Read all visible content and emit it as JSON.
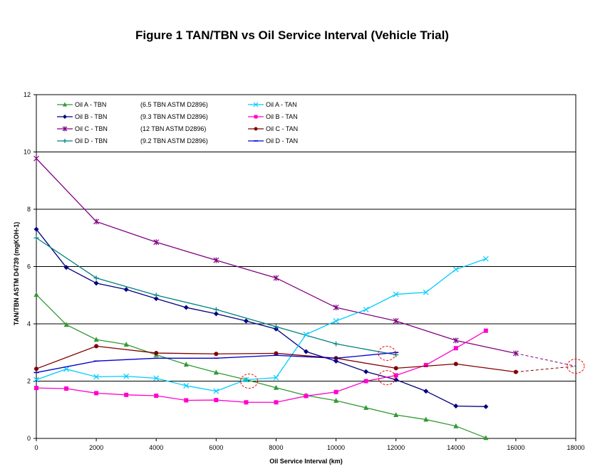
{
  "chart_data": {
    "type": "line",
    "title": "Figure 1 TAN/TBN vs Oil Service Interval (Vehicle Trial)",
    "xlabel": "Oil Service Interval (km)",
    "ylabel": "TAN/TBN ASTM D4739 (mgKOH-1)",
    "xlim": [
      0,
      18000
    ],
    "ylim": [
      0,
      12
    ],
    "xticks": [
      0,
      2000,
      4000,
      6000,
      8000,
      10000,
      12000,
      14000,
      16000,
      18000
    ],
    "yticks": [
      0,
      2,
      4,
      6,
      8,
      10,
      12
    ],
    "grid": "horizontal",
    "legend_position": "top-left",
    "series": [
      {
        "name": "Oil A - TBN",
        "note": "(6.5 TBN ASTM D2896)",
        "color": "#339933",
        "marker": "triangle",
        "x": [
          0,
          1000,
          2000,
          3000,
          4000,
          5000,
          6000,
          7000,
          8000,
          9000,
          10000,
          11000,
          12000,
          13000,
          14000,
          15000
        ],
        "y": [
          5.02,
          3.97,
          3.45,
          3.28,
          2.92,
          2.58,
          2.3,
          2.05,
          1.77,
          1.5,
          1.32,
          1.07,
          0.82,
          0.66,
          0.43,
          0.02
        ]
      },
      {
        "name": "Oil B - TBN",
        "note": "(9.3 TBN ASTM D2896)",
        "color": "#000080",
        "marker": "diamond",
        "x": [
          0,
          1000,
          2000,
          3000,
          4000,
          5000,
          6000,
          7000,
          8000,
          9000,
          10000,
          11000,
          12000,
          13000,
          14000,
          15000
        ],
        "y": [
          7.3,
          5.97,
          5.42,
          5.2,
          4.88,
          4.57,
          4.35,
          4.1,
          3.82,
          3.03,
          2.7,
          2.33,
          2.05,
          1.65,
          1.13,
          1.11
        ]
      },
      {
        "name": "Oil C - TBN",
        "note": "(12 TBN ASTM D2896)",
        "color": "#800080",
        "marker": "star",
        "x": [
          0,
          2000,
          4000,
          6000,
          8000,
          10000,
          12000,
          14000,
          16000
        ],
        "y": [
          9.77,
          7.57,
          6.85,
          6.22,
          5.6,
          4.57,
          4.1,
          3.42,
          2.97
        ]
      },
      {
        "name": "Oil D - TBN",
        "note": "(9.2 TBN ASTM D2896)",
        "color": "#008080",
        "marker": "plus",
        "x": [
          0,
          2000,
          4000,
          6000,
          8000,
          10000,
          12000
        ],
        "y": [
          7.0,
          5.6,
          5.0,
          4.5,
          3.9,
          3.3,
          2.92
        ]
      },
      {
        "name": "Oil A - TAN",
        "color": "#00CCFF",
        "marker": "x",
        "x": [
          0,
          1000,
          2000,
          3000,
          4000,
          5000,
          6000,
          7000,
          8000,
          9000,
          10000,
          11000,
          12000,
          13000,
          14000,
          15000
        ],
        "y": [
          2.05,
          2.42,
          2.15,
          2.17,
          2.1,
          1.84,
          1.65,
          2.05,
          2.12,
          3.63,
          4.1,
          4.5,
          5.03,
          5.1,
          5.9,
          6.27
        ]
      },
      {
        "name": "Oil B - TAN",
        "color": "#FF00CC",
        "marker": "square",
        "x": [
          0,
          1000,
          2000,
          3000,
          4000,
          5000,
          6000,
          7000,
          8000,
          9000,
          10000,
          11000,
          12000,
          13000,
          14000,
          15000
        ],
        "y": [
          1.76,
          1.74,
          1.58,
          1.52,
          1.49,
          1.33,
          1.34,
          1.26,
          1.26,
          1.48,
          1.62,
          2.0,
          2.2,
          2.56,
          3.15,
          3.76
        ]
      },
      {
        "name": "Oil C - TAN",
        "color": "#800000",
        "marker": "circle",
        "x": [
          0,
          2000,
          4000,
          6000,
          8000,
          10000,
          12000,
          14000,
          16000
        ],
        "y": [
          2.43,
          3.22,
          2.98,
          2.95,
          2.97,
          2.8,
          2.45,
          2.6,
          2.32
        ]
      },
      {
        "name": "Oil D - TAN",
        "color": "#0000CC",
        "marker": "dash",
        "x": [
          0,
          2000,
          4000,
          6000,
          8000,
          10000,
          12000
        ],
        "y": [
          2.3,
          2.7,
          2.8,
          2.8,
          2.9,
          2.8,
          3.0
        ]
      }
    ],
    "projections": [
      {
        "color": "#800080",
        "x": [
          16000,
          18000
        ],
        "y": [
          2.97,
          2.52
        ]
      },
      {
        "color": "#800000",
        "x": [
          16000,
          18000
        ],
        "y": [
          2.32,
          2.52
        ]
      }
    ],
    "highlights": [
      {
        "x": 7100,
        "y": 2.0
      },
      {
        "x": 11700,
        "y": 2.97
      },
      {
        "x": 11700,
        "y": 2.12
      },
      {
        "x": 18000,
        "y": 2.52
      }
    ]
  }
}
